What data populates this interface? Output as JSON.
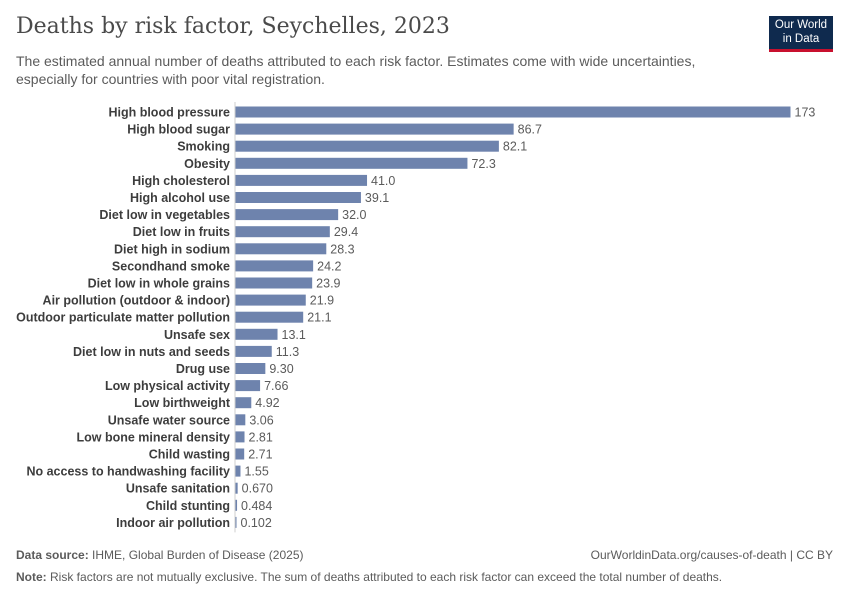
{
  "header": {
    "title": "Deaths by risk factor, Seychelles, 2023",
    "subtitle": "The estimated annual number of deaths attributed to each risk factor. Estimates come with wide uncertainties, especially for countries with poor vital registration."
  },
  "logo": {
    "line1": "Our World",
    "line2": "in Data",
    "bg": "#0f2a4e",
    "accent": "#c8102e"
  },
  "footer": {
    "source_label": "Data source:",
    "source_text": "IHME, Global Burden of Disease (2025)",
    "url_text": "OurWorldinData.org/causes-of-death | CC BY",
    "note_label": "Note:",
    "note_text": "Risk factors are not mutually exclusive. The sum of deaths attributed to each risk factor can exceed the total number of deaths."
  },
  "colors": {
    "bar": "#6e83ad",
    "label": "#3d3d3d",
    "value": "#5b5b5b",
    "axis": "#cfcfcf"
  },
  "chart_data": {
    "type": "bar",
    "orientation": "horizontal",
    "categories": [
      "High blood pressure",
      "High blood sugar",
      "Smoking",
      "Obesity",
      "High cholesterol",
      "High alcohol use",
      "Diet low in vegetables",
      "Diet low in fruits",
      "Diet high in sodium",
      "Secondhand smoke",
      "Diet low in whole grains",
      "Air pollution (outdoor & indoor)",
      "Outdoor particulate matter pollution",
      "Unsafe sex",
      "Diet low in nuts and seeds",
      "Drug use",
      "Low physical activity",
      "Low birthweight",
      "Unsafe water source",
      "Low bone mineral density",
      "Child wasting",
      "No access to handwashing facility",
      "Unsafe sanitation",
      "Child stunting",
      "Indoor air pollution"
    ],
    "values": [
      173,
      86.7,
      82.1,
      72.3,
      41.0,
      39.1,
      32.0,
      29.4,
      28.3,
      24.2,
      23.9,
      21.9,
      21.1,
      13.1,
      11.3,
      9.3,
      7.66,
      4.92,
      3.06,
      2.81,
      2.71,
      1.55,
      0.67,
      0.484,
      0.102
    ],
    "value_labels": [
      "173",
      "86.7",
      "82.1",
      "72.3",
      "41.0",
      "39.1",
      "32.0",
      "29.4",
      "28.3",
      "24.2",
      "23.9",
      "21.9",
      "21.1",
      "13.1",
      "11.3",
      "9.30",
      "7.66",
      "4.92",
      "3.06",
      "2.81",
      "2.71",
      "1.55",
      "0.670",
      "0.484",
      "0.102"
    ],
    "xlim": [
      0,
      173
    ],
    "grid": false,
    "legend": "none"
  }
}
